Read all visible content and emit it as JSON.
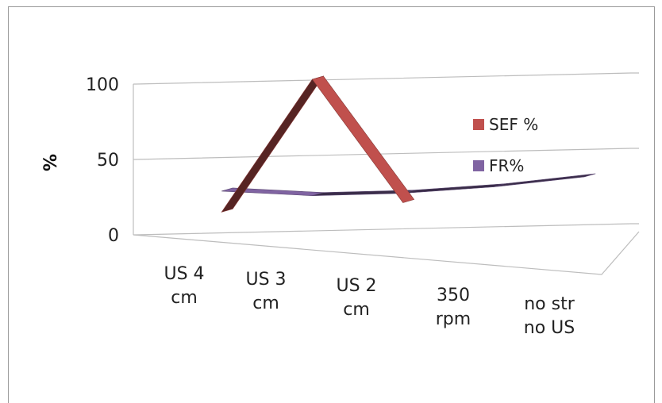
{
  "chart_data": {
    "type": "line",
    "style": "3d",
    "categories": [
      [
        "US 4",
        "cm"
      ],
      [
        "US 3",
        "cm"
      ],
      [
        "US 2",
        "cm"
      ],
      [
        "350",
        "rpm"
      ],
      [
        "no str",
        "no US"
      ]
    ],
    "series": [
      {
        "name": "SEF %",
        "values": [
          5,
          100,
          8,
          null,
          null
        ],
        "color": "#c0504d"
      },
      {
        "name": "FR%",
        "values": [
          20,
          15,
          15,
          18,
          24
        ],
        "color": "#8064a2"
      }
    ],
    "ylabel": "%",
    "yticks": [
      0,
      50,
      100
    ],
    "ylim": [
      0,
      100
    ],
    "legend_position": "right",
    "grid": true
  }
}
